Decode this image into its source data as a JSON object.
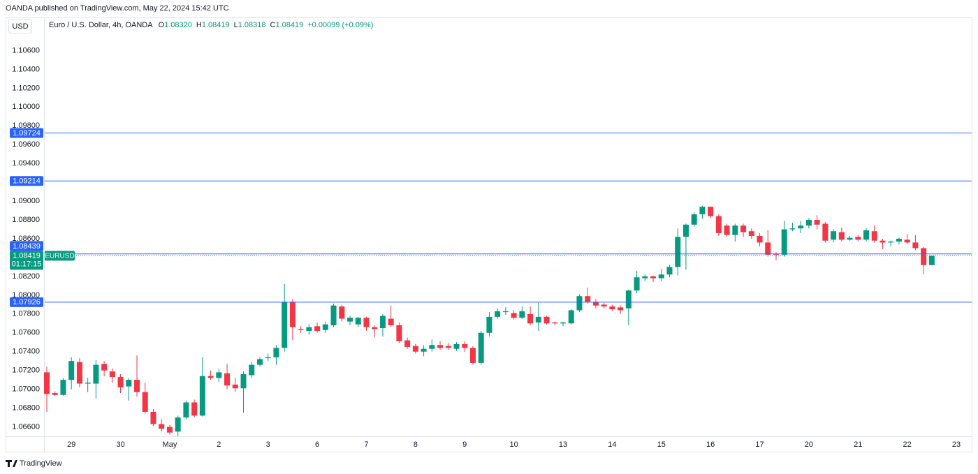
{
  "chart_data": {
    "type": "candlestick",
    "header": "OANDA published on TradingView.com, May 22, 2024 15:42 UTC",
    "currency": "USD",
    "legend": {
      "name": "Euro / U.S. Dollar, 4h, OANDA",
      "o": "O",
      "open": "1.08320",
      "h": "H",
      "high": "1.08419",
      "l": "L",
      "low": "1.08318",
      "c": "C",
      "close": "1.08419",
      "change": "+0.00099 (+0.09%)"
    },
    "brand": "TradingView",
    "categories": [
      null,
      null,
      null,
      "29",
      null,
      null,
      null,
      null,
      null,
      "30",
      null,
      null,
      null,
      null,
      null,
      "May",
      null,
      null,
      null,
      null,
      null,
      "2",
      null,
      null,
      null,
      null,
      null,
      "3",
      null,
      null,
      null,
      null,
      null,
      "6",
      null,
      null,
      null,
      null,
      null,
      "7",
      null,
      null,
      null,
      null,
      null,
      "8",
      null,
      null,
      null,
      null,
      null,
      "9",
      null,
      null,
      null,
      null,
      null,
      "10",
      null,
      null,
      null,
      null,
      null,
      "13",
      null,
      null,
      null,
      null,
      null,
      "14",
      null,
      null,
      null,
      null,
      null,
      "15",
      null,
      null,
      null,
      null,
      null,
      "16",
      null,
      null,
      null,
      null,
      null,
      "17",
      null,
      null,
      null,
      null,
      null,
      "20",
      null,
      null,
      null,
      null,
      null,
      "21",
      null,
      null,
      null,
      null,
      null,
      "22",
      null,
      null,
      null,
      null,
      null,
      "23"
    ],
    "open": [
      1.0718,
      1.0696,
      1.0694,
      1.071,
      1.0729,
      1.0706,
      1.0706,
      1.0727,
      1.0719,
      1.0713,
      1.0703,
      1.071,
      1.0697,
      1.0676,
      1.0663,
      1.066,
      1.0655,
      1.067,
      1.0686,
      1.0672,
      1.0714,
      1.0712,
      1.0717,
      1.0705,
      1.0701,
      1.0715,
      1.0726,
      1.0733,
      1.0734,
      1.0744,
      1.0793,
      1.0764,
      1.0762,
      1.0767,
      1.0763,
      1.0768,
      1.0788,
      1.0772,
      1.0769,
      1.0776,
      1.0766,
      1.0765,
      1.0775,
      1.0768,
      1.0752,
      1.0746,
      1.074,
      1.0743,
      1.0747,
      1.0746,
      1.0743,
      1.0748,
      1.0744,
      1.0728,
      1.076,
      1.0777,
      1.0782,
      1.0781,
      1.0776,
      1.078,
      1.0771,
      1.0777,
      1.0771,
      1.077,
      1.077,
      1.0784,
      1.0799,
      1.0793,
      1.079,
      1.0788,
      1.0787,
      1.0786,
      1.0805,
      1.0818,
      1.082,
      1.0818,
      1.0822,
      1.083,
      1.0862,
      1.0875,
      1.0886,
      1.0894,
      1.0884,
      1.0874,
      1.0864,
      1.0874,
      1.0868,
      1.0863,
      1.0856,
      1.0844,
      1.0843,
      1.087,
      1.0871,
      1.0874,
      1.088,
      1.0876,
      1.0859,
      1.0867,
      1.0859,
      1.0862,
      1.0859,
      1.0868,
      1.0858,
      1.0856,
      1.0857,
      1.0859,
      1.0856,
      1.085,
      1.0832,
      null,
      null,
      null
    ],
    "high": [
      1.0724,
      1.0698,
      1.0712,
      1.0734,
      1.0733,
      1.0712,
      1.0731,
      1.073,
      1.0722,
      1.0716,
      1.0712,
      1.0736,
      1.0707,
      1.0679,
      1.0668,
      1.0662,
      1.0672,
      1.0688,
      1.0689,
      1.0734,
      1.072,
      1.0722,
      1.0727,
      1.0712,
      1.0719,
      1.0729,
      1.0734,
      1.0738,
      1.0747,
      1.0812,
      1.0796,
      1.0767,
      1.0769,
      1.0771,
      1.0772,
      1.0791,
      1.079,
      1.0778,
      1.0777,
      1.0777,
      1.0768,
      1.078,
      1.0789,
      1.0771,
      1.0755,
      1.0748,
      1.0747,
      1.0753,
      1.0751,
      1.0749,
      1.075,
      1.0751,
      1.0746,
      1.0762,
      1.0782,
      1.0786,
      1.0787,
      1.0784,
      1.0788,
      1.0788,
      1.0792,
      1.0778,
      1.0772,
      1.0772,
      1.0785,
      1.0801,
      1.0808,
      1.0796,
      1.0792,
      1.079,
      1.0789,
      1.0806,
      1.0826,
      1.0822,
      1.0821,
      1.0828,
      1.0832,
      1.0871,
      1.0876,
      1.0888,
      1.0895,
      1.0894,
      1.0886,
      1.0876,
      1.0876,
      1.0876,
      1.0871,
      1.0866,
      1.0869,
      1.0846,
      1.0879,
      1.0877,
      1.0879,
      1.0882,
      1.0885,
      1.0878,
      1.087,
      1.0872,
      1.0863,
      1.0864,
      1.0871,
      1.0874,
      1.086,
      1.0858,
      1.0861,
      1.0865,
      1.0864,
      1.0851,
      1.08419,
      null,
      null,
      null
    ],
    "low": [
      1.0676,
      1.0693,
      1.0693,
      1.07,
      1.0702,
      1.0697,
      1.069,
      1.0714,
      1.0707,
      1.0696,
      1.0688,
      1.0692,
      1.0674,
      1.0661,
      1.0655,
      1.0652,
      1.065,
      1.0668,
      1.067,
      1.0671,
      1.071,
      1.0708,
      1.07,
      1.0697,
      1.0675,
      1.0712,
      1.0724,
      1.073,
      1.0726,
      1.074,
      1.0752,
      1.076,
      1.0758,
      1.076,
      1.076,
      1.0766,
      1.0772,
      1.0768,
      1.0766,
      1.0762,
      1.0755,
      1.0756,
      1.0766,
      1.0749,
      1.0743,
      1.0738,
      1.0735,
      1.074,
      1.0742,
      1.0742,
      1.0741,
      1.074,
      1.0726,
      1.0726,
      1.0756,
      1.0775,
      1.0779,
      1.0774,
      1.0775,
      1.0768,
      1.0762,
      1.0769,
      1.0768,
      1.0767,
      1.0769,
      1.0782,
      1.0791,
      1.0786,
      1.0786,
      1.0783,
      1.078,
      1.0768,
      1.0802,
      1.0815,
      1.0814,
      1.0815,
      1.0819,
      1.0821,
      1.0827,
      1.0873,
      1.0881,
      1.0882,
      1.0863,
      1.0862,
      1.0857,
      1.0862,
      1.086,
      1.0852,
      1.0841,
      1.0837,
      1.0841,
      1.0868,
      1.0866,
      1.0871,
      1.087,
      1.0856,
      1.0856,
      1.0857,
      1.0858,
      1.0857,
      1.0857,
      1.0856,
      1.0849,
      1.0852,
      1.0854,
      1.0854,
      1.0848,
      1.0822,
      1.08318,
      null,
      null,
      null
    ],
    "close": [
      1.0695,
      1.0694,
      1.071,
      1.073,
      1.0706,
      1.0707,
      1.0726,
      1.072,
      1.0713,
      1.0702,
      1.071,
      1.0697,
      1.0676,
      1.0663,
      1.0658,
      1.0654,
      1.067,
      1.0686,
      1.0672,
      1.0714,
      1.0712,
      1.0718,
      1.0704,
      1.0701,
      1.0716,
      1.0726,
      1.0732,
      1.0734,
      1.0744,
      1.0793,
      1.0766,
      1.0763,
      1.0766,
      1.0762,
      1.0769,
      1.0789,
      1.0775,
      1.0776,
      1.0776,
      1.0766,
      1.0764,
      1.0778,
      1.0768,
      1.0751,
      1.0745,
      1.074,
      1.0743,
      1.0747,
      1.0744,
      1.0744,
      1.0748,
      1.0744,
      1.0728,
      1.076,
      1.0777,
      1.0783,
      1.0783,
      1.0776,
      1.0783,
      1.077,
      1.0777,
      1.077,
      1.077,
      1.0771,
      1.0784,
      1.0799,
      1.0793,
      1.0789,
      1.0788,
      1.0785,
      1.0784,
      1.0805,
      1.0819,
      1.082,
      1.0818,
      1.0822,
      1.083,
      1.0862,
      1.0875,
      1.0886,
      1.0894,
      1.0884,
      1.0866,
      1.0864,
      1.0874,
      1.0867,
      1.0863,
      1.0856,
      1.0843,
      1.0843,
      1.087,
      1.0871,
      1.0874,
      1.088,
      1.0875,
      1.0858,
      1.0868,
      1.0859,
      1.0861,
      1.0859,
      1.0869,
      1.0858,
      1.0856,
      1.0857,
      1.086,
      1.0856,
      1.085,
      1.0832,
      1.08419,
      null,
      null,
      null
    ],
    "up_color": "#089981",
    "down_color": "#f23645",
    "ylim": [
      1.065,
      1.1093
    ],
    "yticks": [
      {
        "value": 1.066,
        "label": "1.06600"
      },
      {
        "value": 1.068,
        "label": "1.06800"
      },
      {
        "value": 1.07,
        "label": "1.07000"
      },
      {
        "value": 1.072,
        "label": "1.07200"
      },
      {
        "value": 1.074,
        "label": "1.07400"
      },
      {
        "value": 1.076,
        "label": "1.07600"
      },
      {
        "value": 1.078,
        "label": "1.07800"
      },
      {
        "value": 1.08,
        "label": "1.08000"
      },
      {
        "value": 1.082,
        "label": "1.08200"
      },
      {
        "value": 1.086,
        "label": "1.08600"
      },
      {
        "value": 1.088,
        "label": "1.08800"
      },
      {
        "value": 1.09,
        "label": "1.09000"
      },
      {
        "value": 1.094,
        "label": "1.09400"
      },
      {
        "value": 1.096,
        "label": "1.09600"
      },
      {
        "value": 1.098,
        "label": "1.09800"
      },
      {
        "value": 1.1,
        "label": "1.10000"
      },
      {
        "value": 1.102,
        "label": "1.10200"
      },
      {
        "value": 1.104,
        "label": "1.10400"
      },
      {
        "value": 1.106,
        "label": "1.10600"
      }
    ],
    "grid": false,
    "price_lines": [
      {
        "value": 1.09724,
        "label": "1.09724"
      },
      {
        "value": 1.09214,
        "label": "1.09214"
      },
      {
        "value": 1.08439,
        "label": "1.08439"
      },
      {
        "value": 1.07926,
        "label": "1.07926"
      }
    ],
    "price_line_color": "#2962ff",
    "last_price": {
      "value": 1.08419,
      "label": "1.08419",
      "symbol": "EURUSD",
      "countdown": "01:17:15"
    }
  }
}
